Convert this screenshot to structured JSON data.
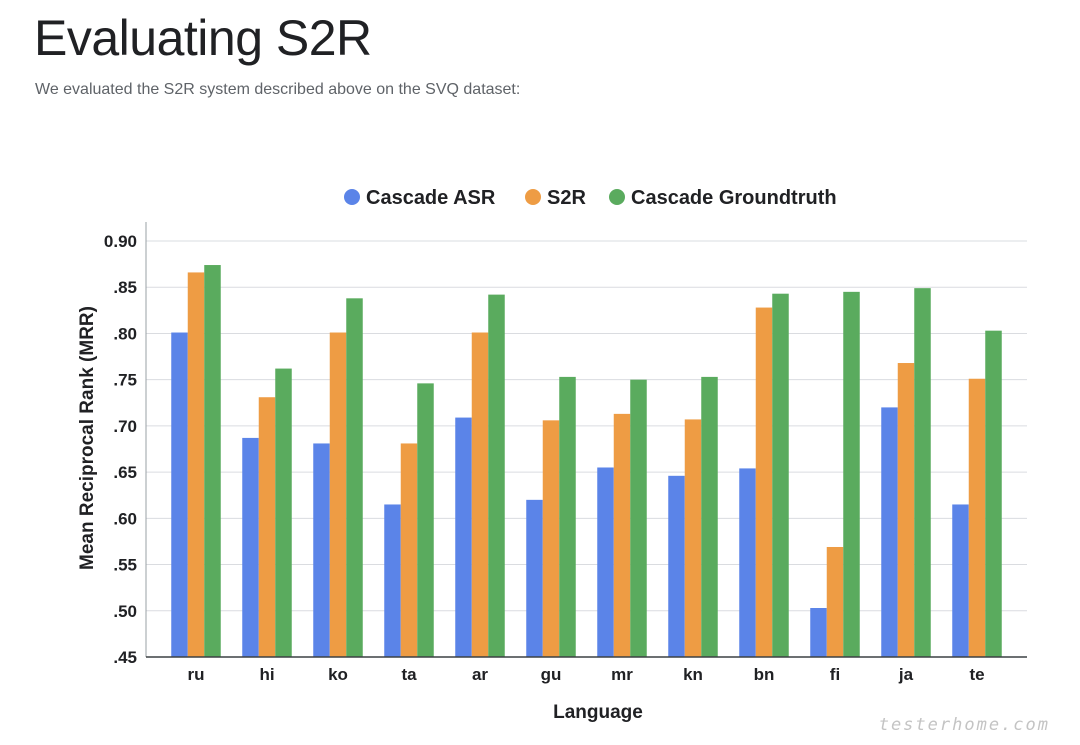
{
  "page": {
    "title": "Evaluating S2R",
    "intro": "We evaluated the S2R system described above on the SVQ dataset:",
    "watermark": "testerhome.com"
  },
  "chart_data": {
    "type": "bar",
    "xlabel": "Language",
    "ylabel": "Mean Reciprocal Rank (MRR)",
    "ylim": [
      0.45,
      0.92
    ],
    "yticks": [
      0.45,
      0.5,
      0.55,
      0.6,
      0.65,
      0.7,
      0.75,
      0.8,
      0.85,
      0.9
    ],
    "ytick_labels": [
      ".45",
      ".50",
      ".55",
      ".60",
      ".65",
      ".70",
      ".75",
      ".80",
      ".85",
      "0.90"
    ],
    "grid": true,
    "legend": "top-center",
    "categories": [
      "ru",
      "hi",
      "ko",
      "ta",
      "ar",
      "gu",
      "mr",
      "kn",
      "bn",
      "fi",
      "ja",
      "te"
    ],
    "series": [
      {
        "name": "Cascade ASR",
        "color": "#5b84e8",
        "values": [
          0.801,
          0.687,
          0.681,
          0.615,
          0.709,
          0.62,
          0.655,
          0.646,
          0.654,
          0.503,
          0.72,
          0.615
        ]
      },
      {
        "name": "S2R",
        "color": "#ee9c44",
        "values": [
          0.866,
          0.731,
          0.801,
          0.681,
          0.801,
          0.706,
          0.713,
          0.707,
          0.828,
          0.569,
          0.768,
          0.751
        ]
      },
      {
        "name": "Cascade Groundtruth",
        "color": "#5aab5e",
        "values": [
          0.874,
          0.762,
          0.838,
          0.746,
          0.842,
          0.753,
          0.75,
          0.753,
          0.843,
          0.845,
          0.849,
          0.803
        ]
      }
    ]
  }
}
